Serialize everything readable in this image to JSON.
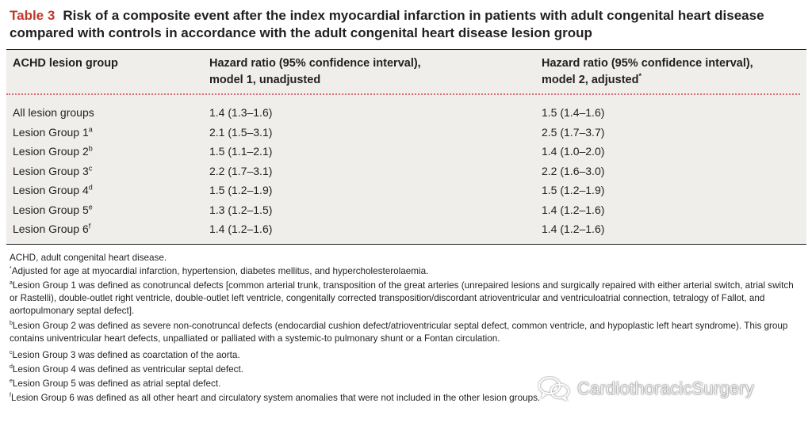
{
  "title": {
    "label": "Table 3",
    "text": "Risk of a composite event after the index myocardial infarction in patients with adult congenital heart disease compared with controls in accordance with the adult congenital heart disease lesion group"
  },
  "colors": {
    "title_label": "#c0392b",
    "panel_background": "#efeeea",
    "dotted_rule": "#d46a78"
  },
  "table": {
    "headers": {
      "col1": "ACHD lesion group",
      "col2_line1": "Hazard ratio (95% confidence interval),",
      "col2_line2": "model 1, unadjusted",
      "col3_line1": "Hazard ratio (95% confidence interval),",
      "col3_line2": "model 2, adjusted",
      "col3_sup": "*"
    },
    "rows": [
      {
        "group": "All lesion groups",
        "sup": "",
        "model1": "1.4 (1.3–1.6)",
        "model2": "1.5 (1.4–1.6)"
      },
      {
        "group": "Lesion Group 1",
        "sup": "a",
        "model1": "2.1 (1.5–3.1)",
        "model2": "2.5 (1.7–3.7)"
      },
      {
        "group": "Lesion Group 2",
        "sup": "b",
        "model1": "1.5 (1.1–2.1)",
        "model2": "1.4 (1.0–2.0)"
      },
      {
        "group": "Lesion Group 3",
        "sup": "c",
        "model1": "2.2 (1.7–3.1)",
        "model2": "2.2 (1.6–3.0)"
      },
      {
        "group": "Lesion Group 4",
        "sup": "d",
        "model1": "1.5 (1.2–1.9)",
        "model2": "1.5 (1.2–1.9)"
      },
      {
        "group": "Lesion Group 5",
        "sup": "e",
        "model1": "1.3 (1.2–1.5)",
        "model2": "1.4 (1.2–1.6)"
      },
      {
        "group": "Lesion Group 6",
        "sup": "f",
        "model1": "1.4 (1.2–1.6)",
        "model2": "1.4 (1.2–1.6)"
      }
    ]
  },
  "footnotes": {
    "abbrev": "ACHD, adult congenital heart disease.",
    "star_mark": "*",
    "star": "Adjusted for age at myocardial infarction, hypertension, diabetes mellitus, and hypercholesterolaemia.",
    "a_mark": "a",
    "a": "Lesion Group 1 was defined as conotruncal defects [common arterial trunk, transposition of the great arteries (unrepaired lesions and surgically repaired with either arterial switch, atrial switch or Rastelli), double-outlet right ventricle, double-outlet left ventricle, congenitally corrected transposition/discordant atrioventricular and ventriculoatrial connection, tetralogy of Fallot, and aortopulmonary septal defect].",
    "b_mark": "b",
    "b": "Lesion Group 2 was defined as severe non-conotruncal defects (endocardial cushion defect/atrioventricular septal defect, common ventricle, and hypoplastic left heart syndrome). This group contains univentricular heart defects, unpalliated or palliated with a systemic-to pulmonary shunt or a Fontan circulation.",
    "c_mark": "c",
    "c": "Lesion Group 3 was defined as coarctation of the aorta.",
    "d_mark": "d",
    "d": "Lesion Group 4 was defined as ventricular septal defect.",
    "e_mark": "e",
    "e": "Lesion Group 5 was defined as atrial septal defect.",
    "f_mark": "f",
    "f": "Lesion Group 6 was defined as all other heart and circulatory system anomalies that were not included in the other lesion groups."
  },
  "watermark": {
    "icon": "wechat-icon",
    "text": "CardiothoracicSurgery"
  }
}
